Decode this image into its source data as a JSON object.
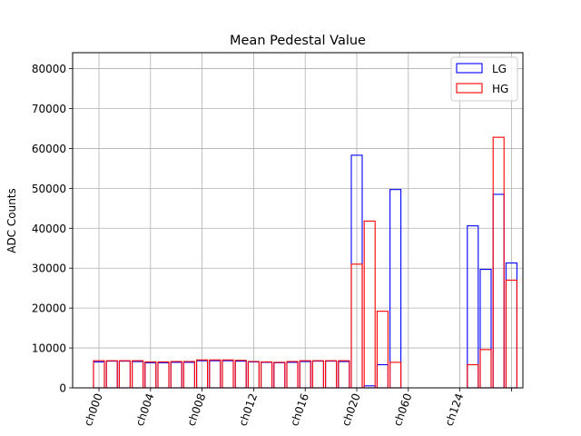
{
  "chart_data": {
    "type": "bar",
    "title": "Mean Pedestal Value",
    "xlabel": "",
    "ylabel": "ADC Counts",
    "ylim": [
      0,
      84000
    ],
    "yticks": [
      0,
      10000,
      20000,
      30000,
      40000,
      50000,
      60000,
      70000,
      80000
    ],
    "ytick_labels": [
      "0",
      "10000",
      "20000",
      "30000",
      "40000",
      "50000",
      "60000",
      "70000",
      "80000"
    ],
    "grid": true,
    "legend_position": "top-right",
    "xtick_labels": [
      "ch000",
      "ch004",
      "ch008",
      "ch012",
      "ch016",
      "ch020",
      "ch060",
      "ch124",
      ""
    ],
    "series": [
      {
        "name": "LG",
        "color": "#0000ff",
        "values": [
          6500,
          6700,
          6700,
          6600,
          6300,
          6300,
          6400,
          6400,
          6800,
          6800,
          6800,
          6700,
          6500,
          6400,
          6300,
          6400,
          6600,
          6700,
          6700,
          6600,
          58300,
          500,
          5800,
          49700,
          0,
          0,
          0,
          0,
          0,
          40600,
          29700,
          48500,
          31300
        ]
      },
      {
        "name": "HG",
        "color": "#ff0000",
        "values": [
          6800,
          6800,
          6800,
          6800,
          6500,
          6500,
          6600,
          6600,
          7000,
          7000,
          7000,
          6900,
          6600,
          6500,
          6400,
          6600,
          6800,
          6800,
          6800,
          6800,
          31000,
          41800,
          19200,
          6400,
          0,
          0,
          0,
          0,
          0,
          5800,
          9600,
          62800,
          27000
        ]
      }
    ]
  }
}
